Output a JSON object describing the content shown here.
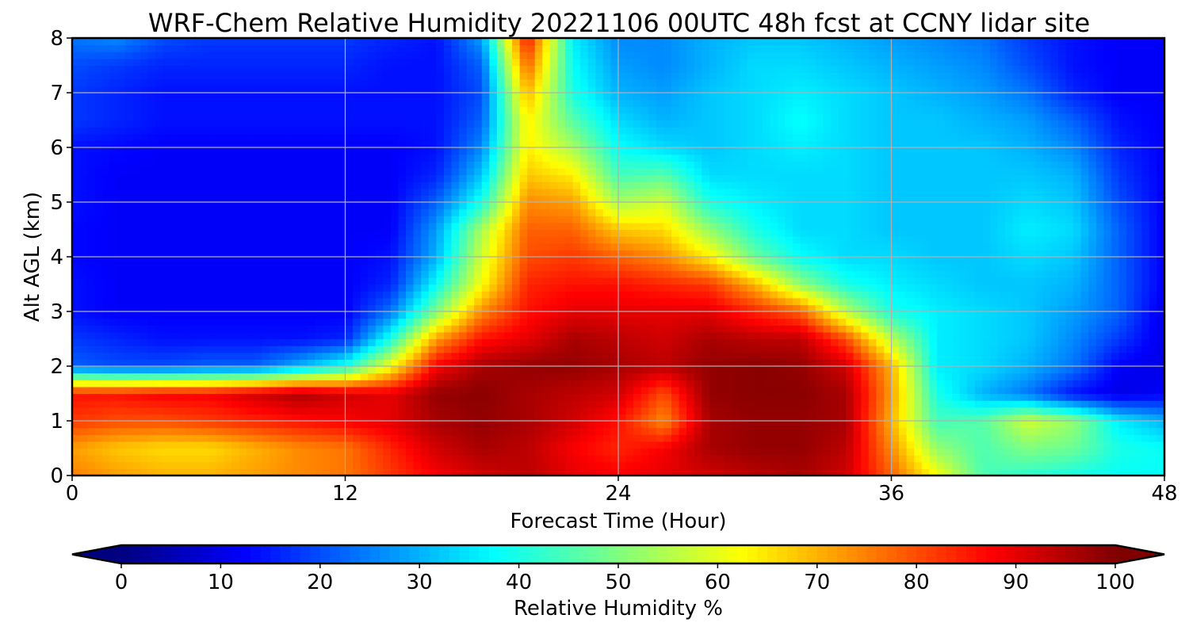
{
  "chart_data": {
    "type": "heatmap",
    "title": "WRF-Chem Relative Humidity 20221106 00UTC 48h fcst at CCNY lidar site",
    "xlabel": "Forecast Time (Hour)",
    "ylabel": "Alt AGL (km)",
    "xlim": [
      0,
      48
    ],
    "ylim": [
      0,
      8
    ],
    "x_ticks": [
      0,
      12,
      24,
      36,
      48
    ],
    "y_ticks": [
      0,
      1,
      2,
      3,
      4,
      5,
      6,
      7,
      8
    ],
    "grid": true,
    "x": [
      0,
      2,
      4,
      6,
      8,
      10,
      12,
      14,
      16,
      18,
      20,
      22,
      24,
      26,
      28,
      30,
      32,
      34,
      36,
      38,
      40,
      42,
      44,
      46,
      48
    ],
    "y": [
      0,
      0.5,
      1,
      1.5,
      2,
      2.5,
      3,
      3.5,
      4,
      4.5,
      5,
      5.5,
      6,
      6.5,
      7,
      7.5,
      8
    ],
    "z": [
      [
        75,
        72,
        70,
        70,
        72,
        74,
        76,
        82,
        88,
        92,
        94,
        90,
        88,
        90,
        92,
        94,
        96,
        92,
        78,
        62,
        45,
        42,
        40,
        38,
        38
      ],
      [
        72,
        68,
        66,
        66,
        70,
        74,
        76,
        84,
        92,
        96,
        94,
        88,
        84,
        88,
        96,
        98,
        98,
        94,
        74,
        52,
        45,
        50,
        48,
        40,
        38
      ],
      [
        82,
        80,
        80,
        82,
        84,
        86,
        88,
        90,
        96,
        98,
        96,
        92,
        86,
        74,
        96,
        98,
        98,
        96,
        70,
        44,
        46,
        58,
        52,
        36,
        30
      ],
      [
        86,
        86,
        88,
        88,
        92,
        96,
        92,
        90,
        98,
        99,
        96,
        94,
        92,
        80,
        98,
        99,
        99,
        96,
        72,
        40,
        30,
        24,
        14,
        10,
        12
      ],
      [
        22,
        20,
        20,
        22,
        22,
        30,
        40,
        62,
        88,
        96,
        98,
        98,
        96,
        94,
        98,
        99,
        98,
        92,
        70,
        36,
        34,
        30,
        24,
        12,
        10
      ],
      [
        18,
        16,
        14,
        14,
        14,
        14,
        16,
        40,
        72,
        86,
        90,
        96,
        94,
        92,
        96,
        94,
        94,
        80,
        56,
        36,
        34,
        32,
        26,
        18,
        10
      ],
      [
        14,
        12,
        12,
        12,
        12,
        12,
        12,
        24,
        50,
        74,
        86,
        90,
        90,
        90,
        90,
        84,
        78,
        56,
        40,
        36,
        34,
        32,
        28,
        22,
        10
      ],
      [
        14,
        12,
        12,
        12,
        12,
        12,
        12,
        16,
        38,
        62,
        84,
        86,
        86,
        84,
        82,
        70,
        52,
        40,
        36,
        34,
        32,
        32,
        30,
        22,
        12
      ],
      [
        13,
        12,
        12,
        12,
        12,
        12,
        12,
        14,
        30,
        58,
        80,
        82,
        78,
        74,
        64,
        48,
        38,
        34,
        34,
        32,
        32,
        34,
        32,
        22,
        12
      ],
      [
        13,
        12,
        12,
        12,
        12,
        12,
        12,
        12,
        28,
        54,
        78,
        78,
        68,
        66,
        52,
        40,
        34,
        34,
        32,
        32,
        32,
        36,
        34,
        22,
        12
      ],
      [
        14,
        12,
        12,
        12,
        12,
        12,
        12,
        12,
        22,
        40,
        74,
        72,
        54,
        58,
        40,
        36,
        34,
        34,
        32,
        32,
        32,
        34,
        32,
        20,
        12
      ],
      [
        14,
        12,
        12,
        12,
        12,
        12,
        12,
        12,
        16,
        32,
        68,
        64,
        44,
        46,
        34,
        34,
        34,
        34,
        32,
        32,
        32,
        32,
        30,
        18,
        12
      ],
      [
        14,
        13,
        12,
        12,
        12,
        12,
        12,
        12,
        14,
        26,
        64,
        54,
        38,
        34,
        32,
        34,
        36,
        34,
        32,
        32,
        32,
        30,
        26,
        16,
        12
      ],
      [
        18,
        16,
        14,
        14,
        14,
        14,
        14,
        14,
        14,
        22,
        64,
        46,
        34,
        30,
        32,
        34,
        38,
        34,
        32,
        32,
        30,
        28,
        22,
        14,
        12
      ],
      [
        18,
        16,
        14,
        14,
        14,
        14,
        14,
        14,
        14,
        20,
        70,
        40,
        30,
        28,
        32,
        34,
        36,
        34,
        32,
        30,
        28,
        24,
        16,
        12,
        12
      ],
      [
        20,
        18,
        16,
        16,
        16,
        16,
        16,
        14,
        14,
        22,
        78,
        38,
        28,
        26,
        30,
        34,
        34,
        32,
        30,
        28,
        26,
        20,
        14,
        12,
        12
      ],
      [
        24,
        26,
        20,
        18,
        18,
        18,
        18,
        16,
        14,
        28,
        86,
        36,
        26,
        26,
        30,
        32,
        32,
        30,
        28,
        26,
        24,
        18,
        14,
        12,
        12
      ]
    ],
    "colorbar": {
      "label": "Relative Humidity %",
      "min": 0,
      "max": 100,
      "ticks": [
        0,
        10,
        20,
        30,
        40,
        50,
        60,
        70,
        80,
        90,
        100
      ],
      "extend": "both",
      "colormap": "jet"
    }
  }
}
